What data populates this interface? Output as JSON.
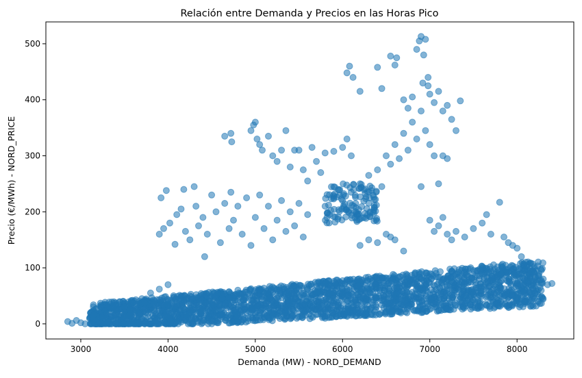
{
  "chart_data": {
    "type": "scatter",
    "title": "Relación entre Demanda y Precios en las Horas Pico",
    "xlabel": "Demanda (MW) - NORD_DEMAND",
    "ylabel": "Precio (€/MWh) - NORD_PRICE",
    "xlim": [
      2600,
      8650
    ],
    "ylim": [
      -27,
      539
    ],
    "xticks": [
      3000,
      4000,
      5000,
      6000,
      7000,
      8000
    ],
    "yticks": [
      0,
      100,
      200,
      300,
      400,
      500
    ],
    "grid": false,
    "legend": "none",
    "marker_color": "#1f77b4",
    "marker_alpha": 0.55,
    "series": [
      {
        "points": [
          [
            2850,
            4
          ],
          [
            2900,
            1
          ],
          [
            2950,
            6
          ],
          [
            3000,
            2
          ],
          [
            3050,
            0
          ],
          [
            3150,
            8
          ],
          [
            3250,
            12
          ],
          [
            3300,
            18
          ],
          [
            3400,
            25
          ],
          [
            3500,
            30
          ],
          [
            3600,
            38
          ],
          [
            3700,
            45
          ],
          [
            3800,
            55
          ],
          [
            3900,
            62
          ],
          [
            4000,
            70
          ],
          [
            3900,
            160
          ],
          [
            3950,
            170
          ],
          [
            3920,
            225
          ],
          [
            3980,
            238
          ],
          [
            4020,
            180
          ],
          [
            4080,
            142
          ],
          [
            4100,
            195
          ],
          [
            4150,
            205
          ],
          [
            4180,
            240
          ],
          [
            4200,
            165
          ],
          [
            4250,
            150
          ],
          [
            4300,
            245
          ],
          [
            4320,
            210
          ],
          [
            4350,
            175
          ],
          [
            4400,
            190
          ],
          [
            4420,
            120
          ],
          [
            4450,
            160
          ],
          [
            4500,
            230
          ],
          [
            4550,
            200
          ],
          [
            4600,
            145
          ],
          [
            4650,
            215
          ],
          [
            4700,
            170
          ],
          [
            4720,
            235
          ],
          [
            4750,
            185
          ],
          [
            4800,
            210
          ],
          [
            4850,
            160
          ],
          [
            4900,
            225
          ],
          [
            4950,
            140
          ],
          [
            5000,
            190
          ],
          [
            5050,
            230
          ],
          [
            5100,
            170
          ],
          [
            5150,
            210
          ],
          [
            5200,
            150
          ],
          [
            5250,
            185
          ],
          [
            5300,
            220
          ],
          [
            5350,
            165
          ],
          [
            5400,
            200
          ],
          [
            5450,
            175
          ],
          [
            5500,
            215
          ],
          [
            5550,
            155
          ],
          [
            5600,
            195
          ],
          [
            4650,
            335
          ],
          [
            4720,
            340
          ],
          [
            4730,
            325
          ],
          [
            4950,
            345
          ],
          [
            4980,
            355
          ],
          [
            5000,
            360
          ],
          [
            5020,
            330
          ],
          [
            5050,
            320
          ],
          [
            5080,
            310
          ],
          [
            5150,
            335
          ],
          [
            5200,
            300
          ],
          [
            5250,
            290
          ],
          [
            5300,
            310
          ],
          [
            5350,
            345
          ],
          [
            5400,
            280
          ],
          [
            5450,
            310
          ],
          [
            5500,
            310
          ],
          [
            5550,
            275
          ],
          [
            5600,
            255
          ],
          [
            5650,
            315
          ],
          [
            5700,
            290
          ],
          [
            5750,
            270
          ],
          [
            5800,
            305
          ],
          [
            5900,
            308
          ],
          [
            6000,
            315
          ],
          [
            6050,
            330
          ],
          [
            6100,
            300
          ],
          [
            5800,
            210
          ],
          [
            5850,
            195
          ],
          [
            5900,
            225
          ],
          [
            5950,
            240
          ],
          [
            6000,
            220
          ],
          [
            6050,
            205
          ],
          [
            6100,
            235
          ],
          [
            6150,
            215
          ],
          [
            6200,
            250
          ],
          [
            6250,
            190
          ],
          [
            6300,
            265
          ],
          [
            6350,
            230
          ],
          [
            6400,
            275
          ],
          [
            6450,
            245
          ],
          [
            6500,
            300
          ],
          [
            6550,
            285
          ],
          [
            6600,
            320
          ],
          [
            6650,
            295
          ],
          [
            6700,
            340
          ],
          [
            6750,
            310
          ],
          [
            6800,
            360
          ],
          [
            6850,
            330
          ],
          [
            6900,
            380
          ],
          [
            6950,
            345
          ],
          [
            7000,
            320
          ],
          [
            7050,
            300
          ],
          [
            7100,
            250
          ],
          [
            7150,
            300
          ],
          [
            7200,
            295
          ],
          [
            6900,
            245
          ],
          [
            6050,
            448
          ],
          [
            6080,
            460
          ],
          [
            6120,
            440
          ],
          [
            6200,
            415
          ],
          [
            6400,
            458
          ],
          [
            6450,
            420
          ],
          [
            6550,
            478
          ],
          [
            6600,
            462
          ],
          [
            6620,
            475
          ],
          [
            6700,
            400
          ],
          [
            6750,
            385
          ],
          [
            6800,
            405
          ],
          [
            6850,
            490
          ],
          [
            6880,
            505
          ],
          [
            6900,
            513
          ],
          [
            6930,
            480
          ],
          [
            6950,
            508
          ],
          [
            6980,
            440
          ],
          [
            7000,
            410
          ],
          [
            7050,
            395
          ],
          [
            7100,
            415
          ],
          [
            7150,
            380
          ],
          [
            7200,
            390
          ],
          [
            7250,
            365
          ],
          [
            7300,
            345
          ],
          [
            7350,
            398
          ],
          [
            6920,
            430
          ],
          [
            6980,
            425
          ],
          [
            7000,
            185
          ],
          [
            7050,
            165
          ],
          [
            7100,
            175
          ],
          [
            7150,
            190
          ],
          [
            7200,
            160
          ],
          [
            7250,
            150
          ],
          [
            7300,
            165
          ],
          [
            7400,
            155
          ],
          [
            7500,
            170
          ],
          [
            7600,
            180
          ],
          [
            7650,
            195
          ],
          [
            7700,
            160
          ],
          [
            7800,
            217
          ],
          [
            7850,
            155
          ],
          [
            7900,
            145
          ],
          [
            7950,
            140
          ],
          [
            8000,
            135
          ],
          [
            8050,
            120
          ],
          [
            8100,
            110
          ],
          [
            8150,
            95
          ],
          [
            8200,
            90
          ],
          [
            8250,
            85
          ],
          [
            8300,
            80
          ],
          [
            8400,
            72
          ],
          [
            8350,
            70
          ],
          [
            6200,
            140
          ],
          [
            6300,
            150
          ],
          [
            6400,
            145
          ],
          [
            6500,
            160
          ],
          [
            6550,
            155
          ],
          [
            6600,
            150
          ],
          [
            6700,
            130
          ],
          [
            6100,
            15
          ],
          [
            6200,
            20
          ],
          [
            5800,
            10
          ],
          [
            5200,
            15
          ],
          [
            4500,
            5
          ],
          [
            4200,
            8
          ],
          [
            3800,
            5
          ],
          [
            3600,
            3
          ]
        ]
      }
    ]
  }
}
